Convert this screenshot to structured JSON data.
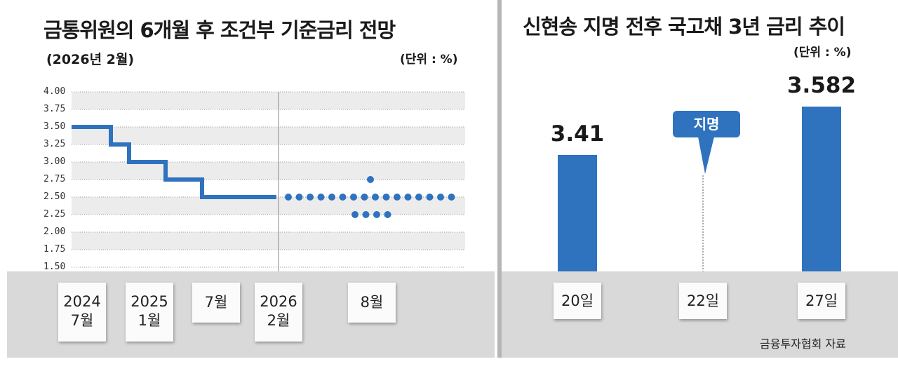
{
  "left": {
    "title": "금통위원의 6개월 후 조건부 기준금리 전망",
    "subtitle": "(2026년 2월)",
    "unit": "(단위 : %)"
  },
  "right": {
    "title": "신현송 지명 전후 국고채 3년 금리 추이",
    "unit": "(단위 : %)",
    "callout": "지명",
    "source": "금융투자협회 자료"
  },
  "chart_data": [
    {
      "type": "line",
      "title": "금통위원의 6개월 후 조건부 기준금리 전망",
      "subtitle": "(2026년 2월)",
      "unit": "(단위 : %)",
      "ylim": [
        1.5,
        4.0
      ],
      "yticks": [
        "4.00",
        "3.75",
        "3.50",
        "3.25",
        "3.00",
        "2.75",
        "2.50",
        "2.25",
        "2.00",
        "1.75",
        "1.50"
      ],
      "x_labels": [
        {
          "line1": "2024",
          "line2": "7월"
        },
        {
          "line1": "2025",
          "line2": "1월"
        },
        {
          "line1": "7월",
          "line2": ""
        },
        {
          "line1": "2026",
          "line2": "2월"
        },
        {
          "line1": "8월",
          "line2": ""
        }
      ],
      "series": [
        {
          "values": [
            3.5,
            3.25,
            3.0,
            2.75,
            2.5,
            2.5
          ]
        }
      ],
      "dot_plot": [
        {
          "value": 2.75,
          "count": 1
        },
        {
          "value": 2.5,
          "count": 16
        },
        {
          "value": 2.25,
          "count": 4
        }
      ],
      "grid": true
    },
    {
      "type": "bar",
      "title": "신현송 지명 전후 국고채 3년 금리 추이",
      "unit": "(단위 : %)",
      "categories": [
        "20일",
        "22일",
        "27일"
      ],
      "values": [
        3.41,
        null,
        3.582
      ],
      "value_labels": [
        "3.41",
        "",
        "3.582"
      ],
      "annotation": {
        "category": "22일",
        "text": "지명"
      },
      "source": "금융투자협회 자료"
    }
  ]
}
